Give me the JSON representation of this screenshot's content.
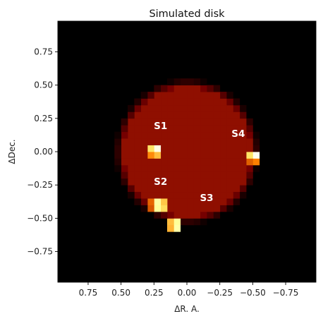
{
  "chart_data": {
    "type": "heatmap",
    "title": "Simulated disk",
    "xlabel": "ΔR. A.",
    "ylabel": "ΔDec.",
    "xlim": [
      0.98,
      -0.98
    ],
    "ylim": [
      -0.98,
      0.98
    ],
    "x_inverted": true,
    "xticks": [
      0.75,
      0.5,
      0.25,
      0.0,
      -0.25,
      -0.5,
      -0.75
    ],
    "xtick_labels": [
      "0.75",
      "0.50",
      "0.25",
      "0.00",
      "−0.25",
      "−0.50",
      "−0.75"
    ],
    "yticks": [
      0.75,
      0.5,
      0.25,
      0.0,
      -0.25,
      -0.5,
      -0.75
    ],
    "ytick_labels": [
      "0.75",
      "0.50",
      "0.25",
      "0.00",
      "−0.25",
      "−0.50",
      "−0.75"
    ],
    "colormap": "afmhot",
    "background_value": 0,
    "grid": false,
    "pixel_size": 0.05,
    "disk": {
      "center": [
        0.0,
        0.0
      ],
      "radius": 0.52,
      "value": 0.28
    },
    "sources": [
      {
        "name": "S1",
        "pixels": [
          {
            "x": 0.225,
            "y": 0.025,
            "value": 0.95
          },
          {
            "x": 0.275,
            "y": 0.025,
            "value": 0.7
          },
          {
            "x": 0.225,
            "y": -0.025,
            "value": 0.62
          },
          {
            "x": 0.275,
            "y": -0.025,
            "value": 0.52
          }
        ]
      },
      {
        "name": "S2",
        "pixels": [
          {
            "x": 0.225,
            "y": -0.375,
            "value": 0.82
          },
          {
            "x": 0.225,
            "y": -0.425,
            "value": 0.8
          },
          {
            "x": 0.175,
            "y": -0.425,
            "value": 0.68
          },
          {
            "x": 0.175,
            "y": -0.375,
            "value": 0.64
          },
          {
            "x": 0.275,
            "y": -0.375,
            "value": 0.45
          },
          {
            "x": 0.275,
            "y": -0.425,
            "value": 0.42
          }
        ]
      },
      {
        "name": "S3",
        "pixels": [
          {
            "x": 0.075,
            "y": -0.525,
            "value": 0.8
          },
          {
            "x": 0.075,
            "y": -0.575,
            "value": 0.83
          },
          {
            "x": 0.125,
            "y": -0.525,
            "value": 0.62
          },
          {
            "x": 0.125,
            "y": -0.575,
            "value": 0.6
          }
        ]
      },
      {
        "name": "S4",
        "pixels": [
          {
            "x": -0.525,
            "y": -0.025,
            "value": 0.97
          },
          {
            "x": -0.475,
            "y": -0.025,
            "value": 0.7
          },
          {
            "x": -0.525,
            "y": -0.075,
            "value": 0.5
          },
          {
            "x": -0.475,
            "y": -0.075,
            "value": 0.44
          }
        ]
      }
    ],
    "annotations": [
      {
        "text": "S1",
        "x": 0.2,
        "y": 0.17
      },
      {
        "text": "S2",
        "x": 0.2,
        "y": -0.25
      },
      {
        "text": "S3",
        "x": -0.15,
        "y": -0.37
      },
      {
        "text": "S4",
        "x": -0.39,
        "y": 0.11
      }
    ]
  }
}
